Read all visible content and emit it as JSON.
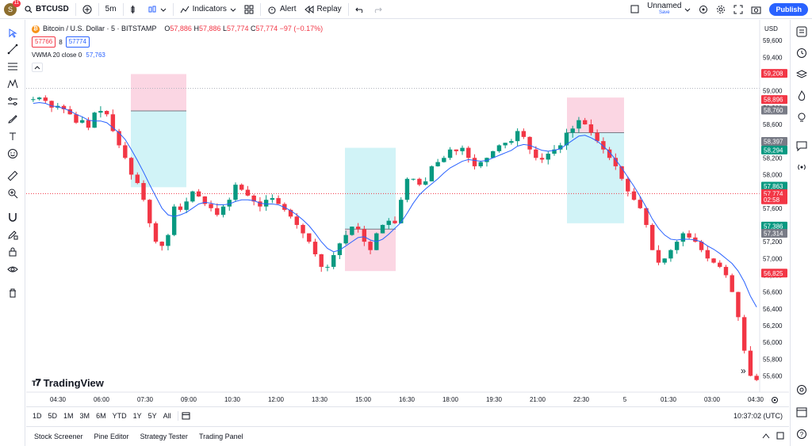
{
  "toolbar": {
    "avatar_letter": "S",
    "avatar_badge": "11",
    "symbol": "BTCUSD",
    "interval": "5m",
    "indicators_label": "Indicators",
    "alert_label": "Alert",
    "replay_label": "Replay",
    "layout_name": "Unnamed",
    "layout_status": "Save",
    "publish_label": "Publish"
  },
  "legend": {
    "title": "Bitcoin / U.S. Dollar · 5 · BITSTAMP",
    "open_label": "O",
    "open": "57,886",
    "high_label": "H",
    "high": "57,886",
    "low_label": "L",
    "low": "57,774",
    "close_label": "C",
    "close": "57,774",
    "change": "−97 (−0.17%)",
    "sell_price": "57766",
    "spread": "8",
    "buy_price": "57774",
    "indicator_name": "VWMA 20 close 0",
    "indicator_value": "57,763",
    "collapse_icon": "chevron-up-icon"
  },
  "chart_data": {
    "type": "candlestick",
    "currency": "USD",
    "y_ticks": [
      "59,600",
      "59,400",
      "59,200",
      "59,000",
      "58,800",
      "58,600",
      "58,400",
      "58,200",
      "58,000",
      "57,800",
      "57,600",
      "57,400",
      "57,200",
      "57,000",
      "56,800",
      "56,600",
      "56,400",
      "56,200",
      "56,000",
      "55,800",
      "55,600"
    ],
    "ylim": [
      55500,
      59800
    ],
    "x_ticks": [
      "04:30",
      "06:00",
      "07:30",
      "09:00",
      "10:30",
      "12:00",
      "13:30",
      "15:00",
      "16:30",
      "18:00",
      "19:30",
      "21:00",
      "22:30",
      "5",
      "01:30",
      "03:00",
      "04:30"
    ],
    "close_path": [
      58900,
      58920,
      58880,
      58800,
      58820,
      58780,
      58720,
      58620,
      58650,
      58560,
      58740,
      58760,
      58720,
      58520,
      58350,
      58200,
      58000,
      57900,
      57700,
      57420,
      57200,
      57150,
      57280,
      57620,
      57580,
      57680,
      57800,
      57740,
      57650,
      57600,
      57520,
      57620,
      57700,
      57880,
      57820,
      57750,
      57680,
      57620,
      57700,
      57720,
      57650,
      57580,
      57500,
      57400,
      57300,
      57200,
      57050,
      56900,
      56900,
      57040,
      57180,
      57280,
      57380,
      57350,
      57200,
      57100,
      57300,
      57400,
      57450,
      57420,
      57700,
      57950,
      57950,
      57880,
      57920,
      58100,
      58150,
      58200,
      58300,
      58280,
      58320,
      58200,
      58100,
      58150,
      58200,
      58280,
      58350,
      58380,
      58400,
      58520,
      58450,
      58300,
      58200,
      58180,
      58250,
      58300,
      58350,
      58500,
      58550,
      58650,
      58600,
      58500,
      58400,
      58300,
      58200,
      58100,
      57950,
      57800,
      57700,
      57600,
      57400,
      57100,
      56950,
      57000,
      57100,
      57200,
      57300,
      57250,
      57200,
      57100,
      57000,
      56950,
      56900,
      56800,
      56600,
      56300,
      55900,
      55600,
      55550
    ],
    "vwma_path": [
      58850,
      58860,
      58850,
      58820,
      58810,
      58790,
      58760,
      58720,
      58690,
      58650,
      58640,
      58640,
      58620,
      58560,
      58500,
      58420,
      58300,
      58170,
      58030,
      57880,
      57740,
      57600,
      57520,
      57500,
      57520,
      57550,
      57600,
      57650,
      57670,
      57660,
      57640,
      57640,
      57650,
      57680,
      57700,
      57700,
      57690,
      57660,
      57650,
      57650,
      57640,
      57610,
      57570,
      57520,
      57460,
      57390,
      57300,
      57200,
      57120,
      57080,
      57100,
      57150,
      57200,
      57250,
      57260,
      57220,
      57200,
      57230,
      57290,
      57360,
      57430,
      57540,
      57660,
      57760,
      57830,
      57890,
      57950,
      58020,
      58080,
      58120,
      58160,
      58180,
      58170,
      58160,
      58170,
      58200,
      58230,
      58260,
      58290,
      58340,
      58360,
      58350,
      58320,
      58290,
      58280,
      58290,
      58310,
      58360,
      58410,
      58460,
      58470,
      58440,
      58400,
      58340,
      58270,
      58180,
      58080,
      57970,
      57860,
      57740,
      57610,
      57470,
      57360,
      57280,
      57230,
      57220,
      57230,
      57230,
      57220,
      57200,
      57150,
      57110,
      57060,
      57000,
      56940,
      56850,
      56720,
      56550,
      56420
    ],
    "position_boxes": [
      {
        "type": "short",
        "entry": 58760,
        "stop": 59200,
        "target": 57850
      },
      {
        "type": "long",
        "entry": 57350,
        "stop": 56850,
        "target": 58320
      },
      {
        "type": "short",
        "entry": 58500,
        "stop": 58920,
        "target": 57420
      }
    ],
    "price_labels": [
      {
        "value": "59,208",
        "bg": "#f23645"
      },
      {
        "value": "58,896",
        "bg": "#f23645"
      },
      {
        "value": "58,760",
        "bg": "#787b86"
      },
      {
        "value": "58,397",
        "bg": "#787b86"
      },
      {
        "value": "58,294",
        "bg": "#089981"
      },
      {
        "value": "57,863",
        "bg": "#089981"
      },
      {
        "value": "57,774",
        "bg": "#f23645"
      },
      {
        "value": "02:58",
        "bg": "#f23645"
      },
      {
        "value": "57,386",
        "bg": "#089981"
      },
      {
        "value": "57,314",
        "bg": "#787b86"
      },
      {
        "value": "56,825",
        "bg": "#f23645"
      }
    ],
    "colors": {
      "up": "#089981",
      "down": "#f23645",
      "vwma": "#2962ff",
      "long_fill": "#b2ebf2",
      "short_fill": "#f8bbd0"
    }
  },
  "watermark": "TradingView",
  "bottom_bar": {
    "ranges": [
      "1D",
      "5D",
      "1M",
      "3M",
      "6M",
      "YTD",
      "1Y",
      "5Y",
      "All"
    ],
    "time": "10:37:02 (UTC)"
  },
  "panel_tabs": [
    "Stock Screener",
    "Pine Editor",
    "Strategy Tester",
    "Trading Panel"
  ]
}
